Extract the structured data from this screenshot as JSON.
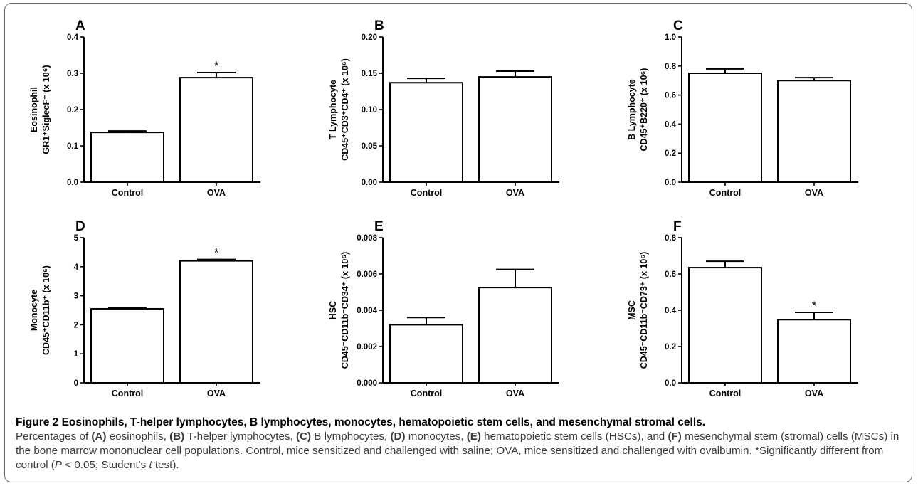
{
  "chart_data": [
    {
      "type": "bar",
      "panel_label": "A",
      "categories": [
        "Control",
        "OVA"
      ],
      "values": [
        0.137,
        0.288
      ],
      "errors": [
        0.004,
        0.014
      ],
      "significant": [
        false,
        true
      ],
      "significance_marker": "*",
      "ylabel_line1": "Eosinophil",
      "ylabel_line2": "GR1⁺SiglecF⁺ (x 10⁶)",
      "ylim": [
        0,
        0.4
      ],
      "yticks": [
        "0.0",
        "0.1",
        "0.2",
        "0.3",
        "0.4"
      ]
    },
    {
      "type": "bar",
      "panel_label": "B",
      "categories": [
        "Control",
        "OVA"
      ],
      "values": [
        0.137,
        0.145
      ],
      "errors": [
        0.006,
        0.008
      ],
      "significant": [
        false,
        false
      ],
      "significance_marker": "*",
      "ylabel_line1": "T Lymphocyte",
      "ylabel_line2": "CD45⁺CD3⁺CD4⁺ (x 10⁶)",
      "ylim": [
        0,
        0.2
      ],
      "yticks": [
        "0.00",
        "0.05",
        "0.10",
        "0.15",
        "0.20"
      ]
    },
    {
      "type": "bar",
      "panel_label": "C",
      "categories": [
        "Control",
        "OVA"
      ],
      "values": [
        0.75,
        0.7
      ],
      "errors": [
        0.03,
        0.02
      ],
      "significant": [
        false,
        false
      ],
      "significance_marker": "*",
      "ylabel_line1": "B Lymphocyte",
      "ylabel_line2": "CD45⁺B220⁺ (x 10⁶)",
      "ylim": [
        0,
        1.0
      ],
      "yticks": [
        "0.0",
        "0.2",
        "0.4",
        "0.6",
        "0.8",
        "1.0"
      ]
    },
    {
      "type": "bar",
      "panel_label": "D",
      "categories": [
        "Control",
        "OVA"
      ],
      "values": [
        2.55,
        4.2
      ],
      "errors": [
        0.03,
        0.05
      ],
      "significant": [
        false,
        true
      ],
      "significance_marker": "*",
      "ylabel_line1": "Monocyte",
      "ylabel_line2": "CD45⁺CD11b⁺ (x 10⁶)",
      "ylim": [
        0,
        5
      ],
      "yticks": [
        "0",
        "1",
        "2",
        "3",
        "4",
        "5"
      ]
    },
    {
      "type": "bar",
      "panel_label": "E",
      "categories": [
        "Control",
        "OVA"
      ],
      "values": [
        0.0032,
        0.00525
      ],
      "errors": [
        0.0004,
        0.001
      ],
      "significant": [
        false,
        false
      ],
      "significance_marker": "*",
      "ylabel_line1": "HSC",
      "ylabel_line2": "CD45⁻CD11b⁻CD34⁺ (x 10⁶)",
      "ylim": [
        0,
        0.008
      ],
      "yticks": [
        "0.000",
        "0.002",
        "0.004",
        "0.006",
        "0.008"
      ]
    },
    {
      "type": "bar",
      "panel_label": "F",
      "categories": [
        "Control",
        "OVA"
      ],
      "values": [
        0.635,
        0.348
      ],
      "errors": [
        0.035,
        0.04
      ],
      "significant": [
        false,
        true
      ],
      "significance_marker": "*",
      "ylabel_line1": "MSC",
      "ylabel_line2": "CD45⁻CD11b⁻CD73⁺ (x 10⁶)",
      "ylim": [
        0,
        0.8
      ],
      "yticks": [
        "0.0",
        "0.2",
        "0.4",
        "0.6",
        "0.8"
      ]
    }
  ],
  "caption": {
    "title": "Figure 2 Eosinophils, T-helper lymphocytes, B lymphocytes, monocytes, hematopoietic stem cells, and mesenchymal stromal cells.",
    "t1": "Percentages of ",
    "lA": "(A)",
    "t2": " eosinophils, ",
    "lB": "(B)",
    "t3": " T-helper lymphocytes, ",
    "lC": "(C)",
    "t4": " B lymphocytes, ",
    "lD": "(D)",
    "t5": " monocytes, ",
    "lE": "(E)",
    "t6": " hematopoietic stem cells (HSCs), and ",
    "lF": "(F)",
    "t7": " mesenchymal stem (stromal) cells (MSCs) in the bone marrow mononuclear cell populations. Control, mice sensitized and challenged with saline; OVA, mice sensitized and challenged with ovalbumin. *Significantly different from control (",
    "p": "P",
    "t8": " < 0.05; Student's ",
    "t": "t",
    "t9": " test)."
  }
}
